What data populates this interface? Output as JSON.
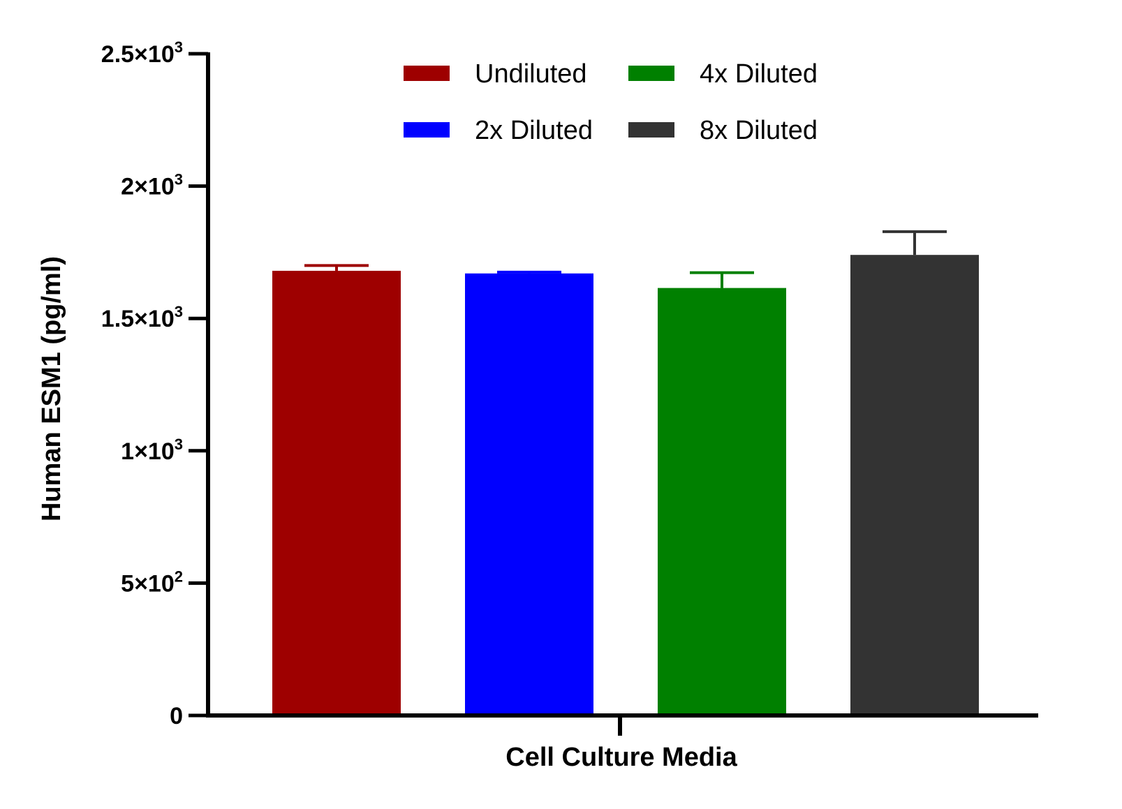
{
  "chart_data": {
    "type": "bar",
    "xlabel": "Cell Culture Media",
    "ylabel": "Human ESM1 (pg/ml)",
    "ylim": [
      0,
      2500
    ],
    "yticks": [
      {
        "value": 0,
        "mantissa": "0",
        "exponent": ""
      },
      {
        "value": 500,
        "mantissa": "5×10",
        "exponent": "2"
      },
      {
        "value": 1000,
        "mantissa": "1×10",
        "exponent": "3"
      },
      {
        "value": 1500,
        "mantissa": "1.5×10",
        "exponent": "3"
      },
      {
        "value": 2000,
        "mantissa": "2×10",
        "exponent": "3"
      },
      {
        "value": 2500,
        "mantissa": "2.5×10",
        "exponent": "3"
      }
    ],
    "categories": [
      "Cell Culture Media"
    ],
    "series": [
      {
        "name": "Undiluted",
        "value": 1680,
        "error": 20,
        "color": "#9e0000"
      },
      {
        "name": "2x Diluted",
        "value": 1670,
        "error": 5,
        "color": "#0000ff"
      },
      {
        "name": "4x Diluted",
        "value": 1615,
        "error": 58,
        "color": "#008000"
      },
      {
        "name": "8x Diluted",
        "value": 1740,
        "error": 88,
        "color": "#333333"
      }
    ],
    "legend": {
      "placement": "top",
      "columns": 2
    },
    "grid": false
  }
}
